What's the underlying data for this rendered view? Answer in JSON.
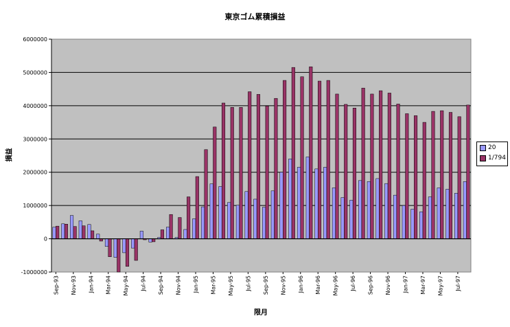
{
  "chart_data": {
    "type": "bar",
    "title": "東京ゴム累積損益",
    "xlabel": "限月",
    "ylabel": "損益",
    "ylim": [
      -1000000,
      6000000
    ],
    "yticks": [
      6000000,
      5000000,
      4000000,
      3000000,
      2000000,
      1000000,
      0,
      -1000000
    ],
    "tick_labels": [
      "Sep-93",
      "Nov-93",
      "Jan-94",
      "Mar-94",
      "May-94",
      "Jul-94",
      "Sep-94",
      "Nov-94",
      "Jan-95",
      "Mar-95",
      "May-95",
      "Jul-95",
      "Sep-95",
      "Nov-95",
      "Jan-96",
      "Mar-96",
      "May-96",
      "Jul-96",
      "Sep-96",
      "Nov-96",
      "Jan-97",
      "Mar-97",
      "May-97",
      "Jul-97"
    ],
    "grid": true,
    "legend_position": "right",
    "series": [
      {
        "name": "20",
        "color": "#9999ff",
        "values": [
          350000,
          450000,
          700000,
          540000,
          430000,
          140000,
          -230000,
          -560000,
          -420000,
          -280000,
          230000,
          -100000,
          40000,
          350000,
          40000,
          280000,
          600000,
          960000,
          1650000,
          1570000,
          1090000,
          1010000,
          1420000,
          1190000,
          950000,
          1440000,
          2000000,
          2400000,
          2150000,
          2460000,
          2100000,
          2150000,
          1530000,
          1240000,
          1160000,
          1750000,
          1720000,
          1810000,
          1660000,
          1310000,
          1000000,
          890000,
          810000,
          1260000,
          1530000,
          1490000,
          1370000,
          1720000
        ]
      },
      {
        "name": "1/794",
        "color": "#993366",
        "values": [
          380000,
          440000,
          370000,
          390000,
          240000,
          -70000,
          -540000,
          -1000000,
          -830000,
          -650000,
          -30000,
          -90000,
          270000,
          730000,
          640000,
          1260000,
          1870000,
          2680000,
          3360000,
          4080000,
          3950000,
          3950000,
          4420000,
          4340000,
          3990000,
          4220000,
          4760000,
          5150000,
          4870000,
          5170000,
          4740000,
          4760000,
          4350000,
          4040000,
          3930000,
          4530000,
          4350000,
          4450000,
          4380000,
          4050000,
          3760000,
          3700000,
          3500000,
          3830000,
          3850000,
          3800000,
          3670000,
          4020000
        ]
      }
    ]
  }
}
